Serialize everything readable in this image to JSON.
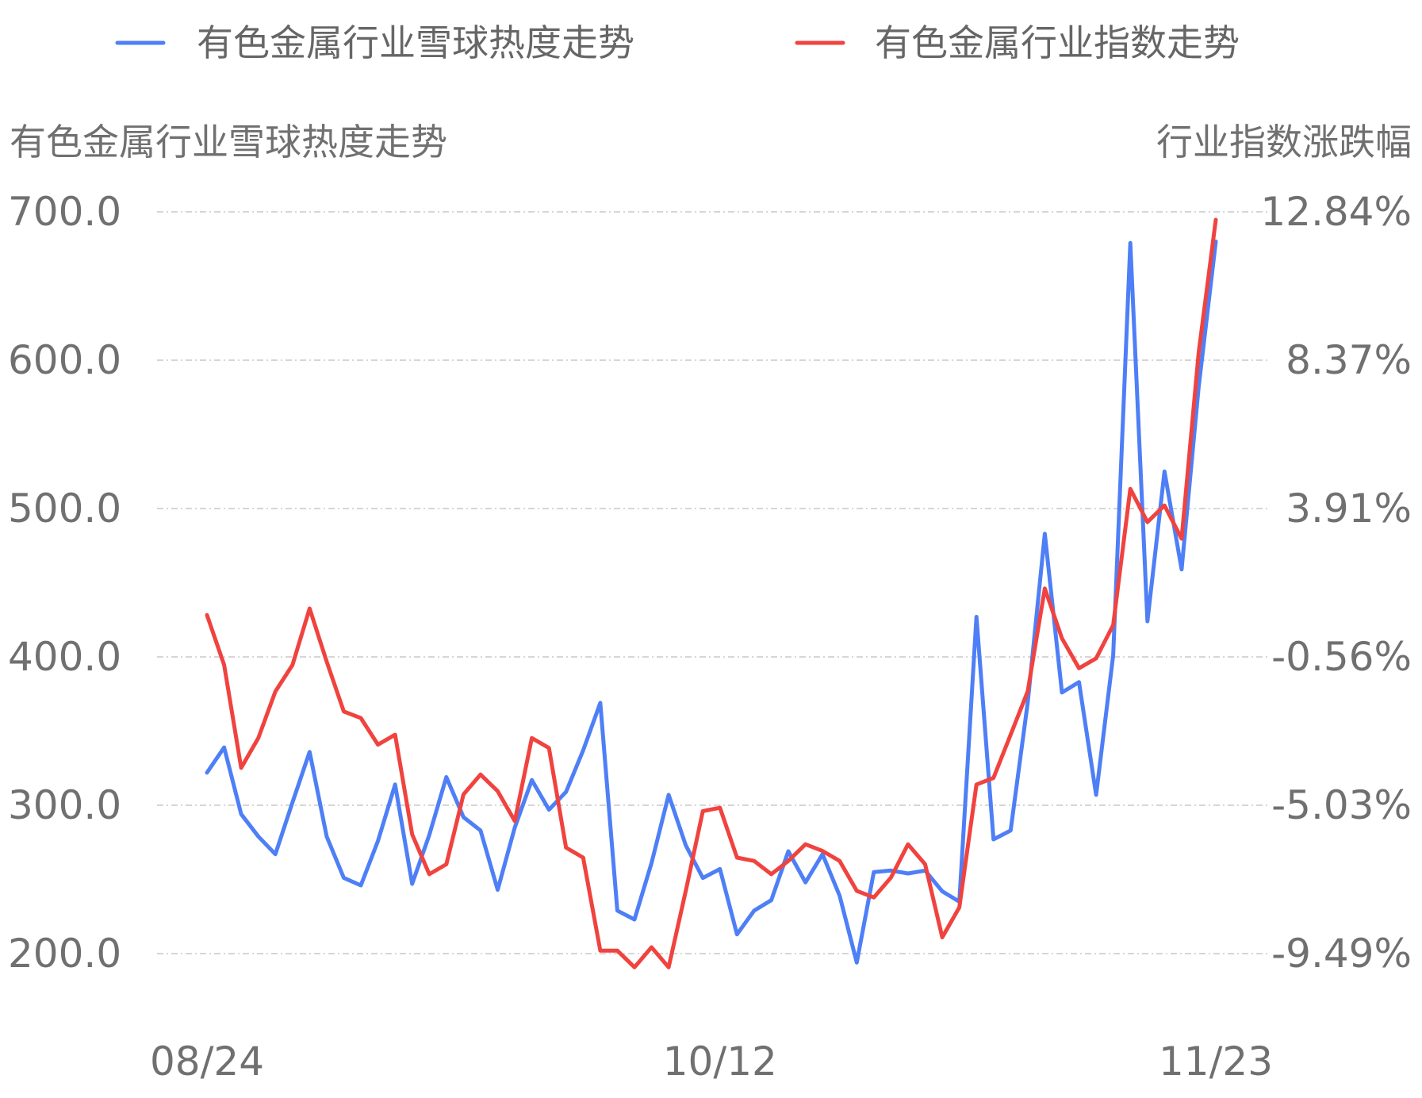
{
  "chart_data": {
    "type": "line",
    "legend": [
      {
        "name": "有色金属行业雪球热度走势",
        "color": "#4E7FF6"
      },
      {
        "name": "有色金属行业指数走势",
        "color": "#F0433F"
      }
    ],
    "legend_position": "top",
    "left_axis_title": "有色金属行业雪球热度走势",
    "right_axis_title": "行业指数涨跌幅",
    "left_ticks": [
      "700.0",
      "600.0",
      "500.0",
      "400.0",
      "300.0",
      "200.0"
    ],
    "left_ylim": [
      200,
      700
    ],
    "right_ticks": [
      "12.84%",
      "8.37%",
      "3.91%",
      "-0.56%",
      "-5.03%",
      "-9.49%"
    ],
    "right_ylim": [
      -9.49,
      12.84
    ],
    "x_ticks": [
      "08/24",
      "10/12",
      "11/23"
    ],
    "grid": true,
    "series": [
      {
        "name": "有色金属行业雪球热度走势",
        "axis": "left",
        "color": "#4E7FF6",
        "values": [
          322,
          339,
          294,
          279,
          267,
          302,
          336,
          279,
          251,
          246,
          276,
          314,
          247,
          280,
          319,
          292,
          283,
          243,
          285,
          317,
          297,
          309,
          337,
          369,
          229,
          223,
          261,
          307,
          273,
          251,
          257,
          213,
          229,
          236,
          269,
          248,
          267,
          239,
          194,
          255,
          256,
          254,
          256,
          242,
          235,
          427,
          277,
          283,
          369,
          483,
          376,
          383,
          307,
          401,
          679,
          424,
          525,
          459,
          582,
          680
        ]
      },
      {
        "name": "有色金属行业指数走势",
        "axis": "right",
        "color": "#F0433F",
        "values": [
          0.7,
          -0.8,
          -3.9,
          -3.0,
          -1.6,
          -0.8,
          0.9,
          -0.7,
          -2.2,
          -2.4,
          -3.2,
          -2.9,
          -5.9,
          -7.1,
          -6.8,
          -4.7,
          -4.1,
          -4.6,
          -5.5,
          -3.0,
          -3.3,
          -6.3,
          -6.6,
          -9.4,
          -9.4,
          -9.9,
          -9.3,
          -9.9,
          -7.6,
          -5.2,
          -5.1,
          -6.6,
          -6.7,
          -7.1,
          -6.7,
          -6.2,
          -6.4,
          -6.7,
          -7.6,
          -7.8,
          -7.2,
          -6.2,
          -6.8,
          -9.0,
          -8.1,
          -4.4,
          -4.2,
          -2.9,
          -1.6,
          1.5,
          -0.0,
          -0.9,
          -0.6,
          0.4,
          4.5,
          3.5,
          4.0,
          3.0,
          8.6,
          12.6
        ]
      }
    ]
  }
}
